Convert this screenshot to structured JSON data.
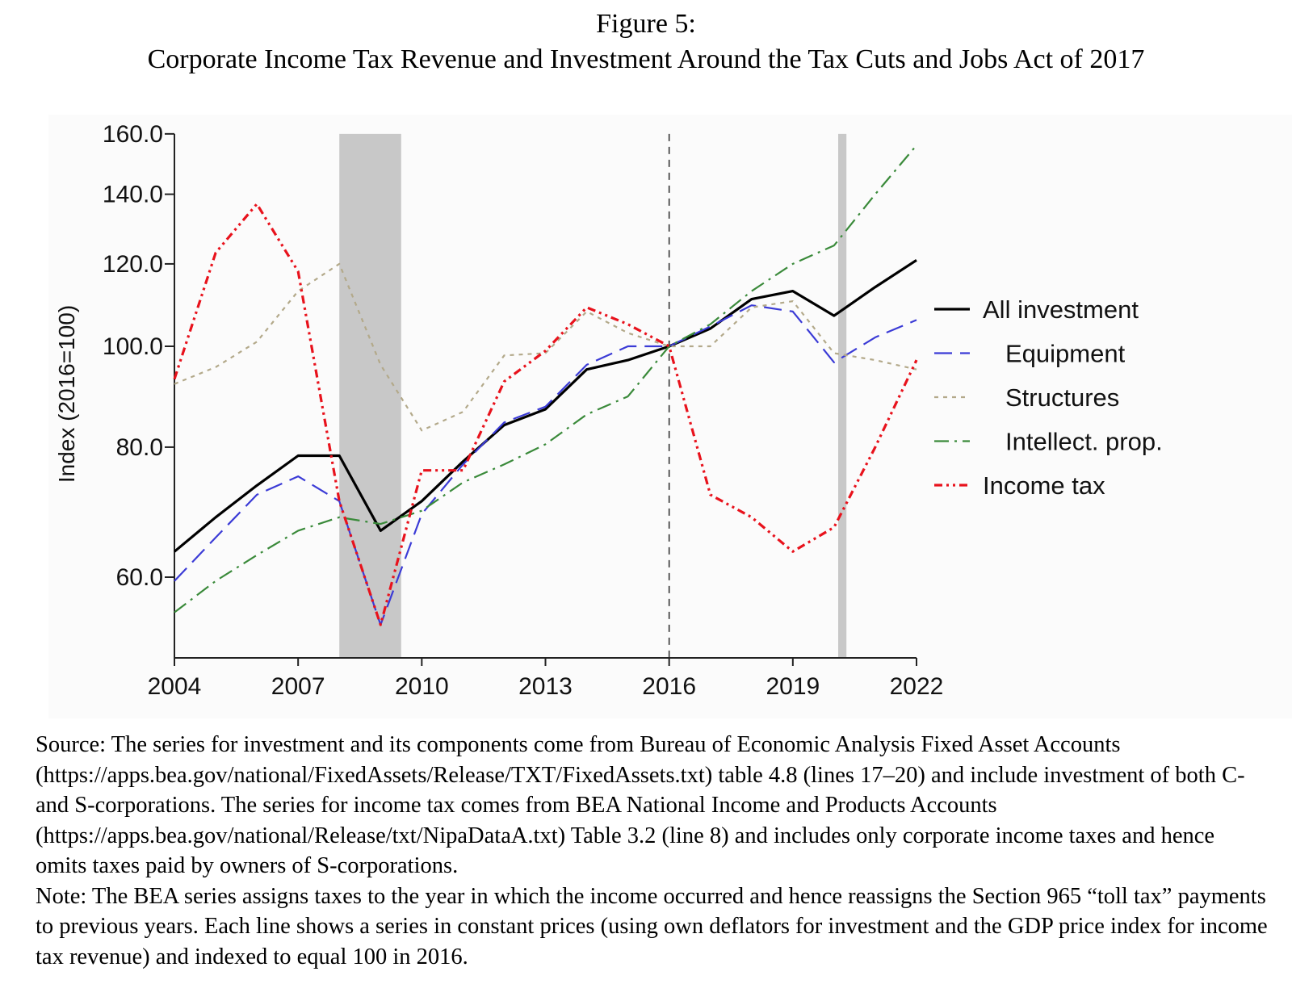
{
  "figure": {
    "label": "Figure 5:",
    "title": "Corporate Income Tax Revenue and Investment Around the Tax Cuts and Jobs Act of 2017"
  },
  "notes": {
    "source": "Source: The series for investment and its components come from Bureau of Economic Analysis Fixed Asset Accounts (https://apps.bea.gov/national/FixedAssets/Release/TXT/FixedAssets.txt) table 4.8 (lines 17–20) and include investment of both C- and S-corporations. The series for income tax comes from BEA National Income and Products Accounts (https://apps.bea.gov/national/Release/txt/NipaDataA.txt) Table 3.2 (line 8) and includes only corporate income taxes and hence omits taxes paid by owners of S-corporations.",
    "note": "Note: The BEA series assigns taxes to the year in which the income occurred and hence reassigns the Section 965 “toll tax” payments to previous years. Each line shows a series in constant prices (using own deflators for investment and the GDP price index for income tax revenue) and indexed to equal 100 in 2016."
  },
  "chart_data": {
    "type": "line",
    "title": "Corporate Income Tax Revenue and Investment Around the Tax Cuts and Jobs Act of 2017",
    "xlabel": "",
    "ylabel": "Index (2016=100)",
    "y_scale": "log",
    "xlim": [
      2004,
      2022
    ],
    "ylim": [
      52,
      160
    ],
    "x_ticks": [
      "2004",
      "2007",
      "2010",
      "2013",
      "2016",
      "2019",
      "2022"
    ],
    "y_ticks": [
      "60.0",
      "80.0",
      "100.0",
      "120.0",
      "140.0",
      "160.0"
    ],
    "y_tick_values": [
      60,
      80,
      100,
      120,
      140,
      160
    ],
    "grid": false,
    "legend_position": "right",
    "x": [
      2004,
      2005,
      2006,
      2007,
      2008,
      2009,
      2010,
      2011,
      2012,
      2013,
      2014,
      2015,
      2016,
      2017,
      2018,
      2019,
      2020,
      2021,
      2022
    ],
    "series": [
      {
        "name": "All investment",
        "color": "#000000",
        "dash": "solid",
        "values": [
          63.5,
          68.5,
          73.5,
          78.5,
          78.5,
          66.5,
          71,
          77.5,
          84,
          87,
          95,
          97,
          100,
          104,
          111,
          113,
          107,
          114,
          121
        ]
      },
      {
        "name": "Equipment",
        "color": "#3b3bd6",
        "dash": "longdash",
        "values": [
          59.5,
          65.5,
          72,
          75,
          71,
          54,
          69,
          77,
          84.5,
          87.5,
          96,
          100,
          100,
          104.5,
          109.5,
          108,
          96.5,
          102,
          106
        ]
      },
      {
        "name": "Structures",
        "color": "#b3a98a",
        "dash": "dotted",
        "values": [
          92,
          95.5,
          101,
          113,
          120,
          96,
          83,
          86.5,
          98,
          98.5,
          108,
          103,
          100,
          100,
          109,
          110.5,
          98.5,
          97,
          95
        ]
      },
      {
        "name": "Intellect. prop.",
        "color": "#3a8a3a",
        "dash": "dashdot",
        "values": [
          55.5,
          59.5,
          63,
          66.5,
          68.5,
          67.5,
          69.5,
          74,
          77,
          80.5,
          86,
          89.5,
          100,
          105,
          113,
          120,
          125,
          140,
          156
        ]
      },
      {
        "name": "Income tax",
        "color": "#e8121c",
        "dash": "dashdotdot",
        "values": [
          93,
          123,
          137,
          118,
          71,
          54,
          76,
          76,
          92.5,
          99,
          109,
          105,
          100,
          72,
          68.5,
          63.5,
          67,
          80,
          97
        ]
      }
    ],
    "recession_shading": [
      [
        2008,
        2009.5
      ],
      [
        2020.1,
        2020.3
      ]
    ],
    "reference_line": {
      "x": 2016,
      "style": "dashed"
    }
  }
}
